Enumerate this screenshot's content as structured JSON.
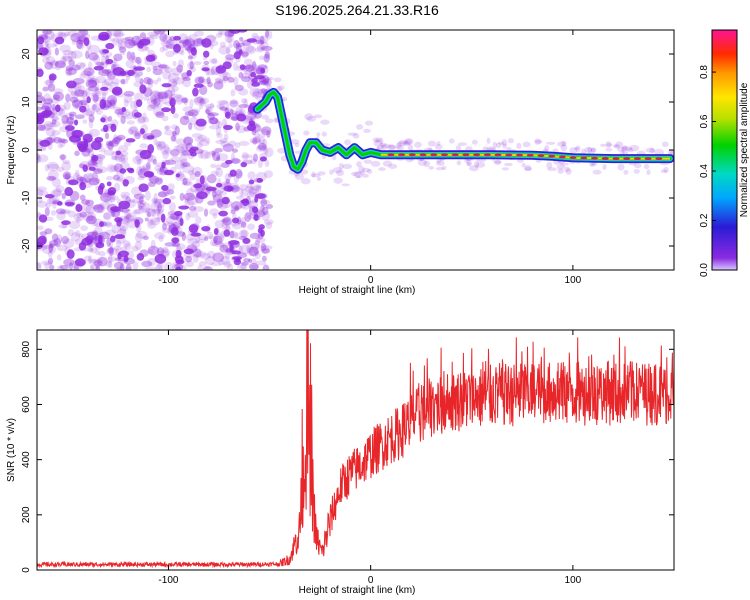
{
  "title": "S196.2025.264.21.33.R16",
  "colors": {
    "trace": "#e8262a",
    "ridge_low": "#2a24d6",
    "ridge_mid": "#22c9c9",
    "ridge_high": "#d8203a",
    "noise": "#8f2ee0"
  },
  "chart_data": [
    {
      "type": "heatmap",
      "xlabel": "Height of straight line (km)",
      "ylabel": "Frequency (Hz)",
      "xlim": [
        -165,
        150
      ],
      "ylim": [
        -25,
        25
      ],
      "xticks": [
        -100,
        0,
        100
      ],
      "yticks": [
        -20,
        -10,
        0,
        10,
        20
      ],
      "colorbar": {
        "label": "Normalized spectral amplitude",
        "range": [
          0,
          0.97
        ],
        "ticks": [
          0.0,
          0.2,
          0.4,
          0.6,
          0.8
        ]
      },
      "ridge": {
        "x": [
          -56,
          -52,
          -50,
          -48,
          -46,
          -44,
          -42,
          -40,
          -38,
          -36,
          -34,
          -32,
          -30,
          -27,
          -24,
          -20,
          -16,
          -12,
          -8,
          -4,
          0,
          5,
          10,
          20,
          40,
          60,
          80,
          90,
          100,
          120,
          140,
          148
        ],
        "y": [
          8.5,
          10,
          11.5,
          12,
          11,
          7,
          3,
          -1,
          -3.5,
          -4,
          -2.5,
          0,
          1.5,
          1.5,
          0,
          -0.5,
          0.5,
          -1,
          0.5,
          -1,
          -0.5,
          -1,
          -1,
          -1,
          -1,
          -1,
          -1.1,
          -1.3,
          -1.6,
          -1.8,
          -1.8,
          -1.8
        ]
      }
    },
    {
      "type": "line",
      "xlabel": "Height of straight line (km)",
      "ylabel": "SNR (10 * v/v)",
      "xlim": [
        -165,
        150
      ],
      "ylim": [
        0,
        870
      ],
      "xticks": [
        -100,
        0,
        100
      ],
      "yticks": [
        0,
        200,
        400,
        600,
        800
      ],
      "envelope": {
        "x": [
          -165,
          -60,
          -45,
          -40,
          -35,
          -33,
          -31,
          -29,
          -27,
          -24,
          -20,
          -15,
          -10,
          -5,
          0,
          5,
          10,
          15,
          20,
          30,
          40,
          60,
          80,
          100,
          120,
          150
        ],
        "y": [
          20,
          20,
          22,
          40,
          150,
          350,
          550,
          300,
          120,
          60,
          180,
          300,
          350,
          380,
          420,
          450,
          480,
          500,
          540,
          590,
          610,
          630,
          640,
          640,
          640,
          640
        ]
      }
    }
  ]
}
